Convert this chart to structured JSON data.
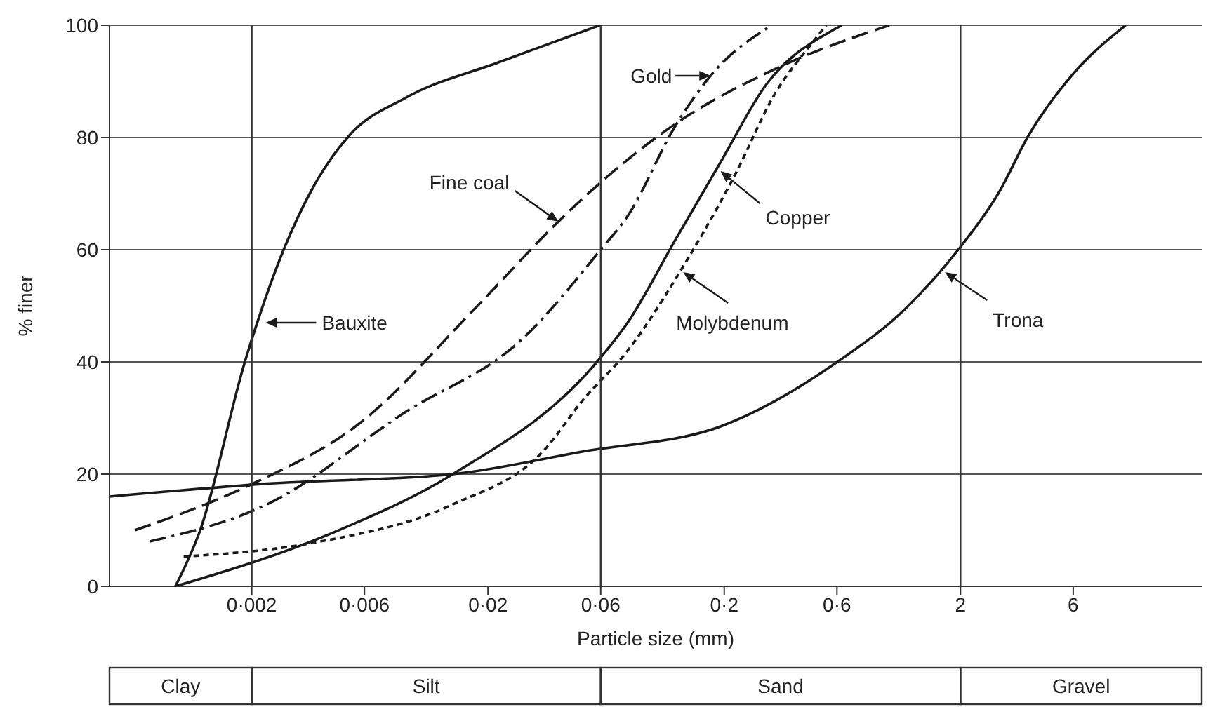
{
  "chart_data": {
    "type": "line",
    "xlabel": "Particle size (mm)",
    "ylabel": "% finer",
    "log": "x",
    "xlim": [
      0.0005,
      21
    ],
    "ylim": [
      0,
      100
    ],
    "xticks": [
      {
        "value": 0.002,
        "label": "0·002"
      },
      {
        "value": 0.006,
        "label": "0·006"
      },
      {
        "value": 0.02,
        "label": "0·02"
      },
      {
        "value": 0.06,
        "label": "0·06"
      },
      {
        "value": 0.2,
        "label": "0·2"
      },
      {
        "value": 0.6,
        "label": "0·6"
      },
      2,
      6
    ],
    "yticks": [
      0,
      20,
      40,
      60,
      80,
      100
    ],
    "grid": "y",
    "legend": false,
    "series": [
      {
        "color": "#1a1a1a",
        "line_style": "solid",
        "x": [
          0.00095,
          0.00121,
          0.00187,
          0.00273,
          0.00368,
          0.00521,
          0.0089,
          0.0222,
          0.0595
        ],
        "values": [
          0,
          10,
          40,
          60,
          71.5,
          80.5,
          87,
          93.4,
          100
        ]
      },
      {
        "color": "#1a1a1a",
        "line_style": "dashed",
        "x": [
          0.00064,
          0.00195,
          0.0057,
          0.0176,
          0.0397,
          0.05,
          0.124,
          0.332,
          1.0
        ],
        "values": [
          10,
          18,
          29,
          49.5,
          65,
          69,
          82.4,
          92.3,
          100
        ]
      },
      {
        "color": "#1a1a1a",
        "line_style": "dashdot",
        "x": [
          0.00074,
          0.00232,
          0.0089,
          0.0278,
          0.06,
          0.078,
          0.124,
          0.175,
          0.318
        ],
        "values": [
          8,
          14.6,
          31,
          44,
          60,
          66,
          82,
          91,
          100
        ]
      },
      {
        "color": "#1a1a1a",
        "line_style": "solid",
        "x": [
          0.00095,
          0.00455,
          0.0142,
          0.0595,
          0.078,
          0.124,
          0.193,
          0.302,
          0.57,
          0.63
        ],
        "values": [
          0,
          9.8,
          20,
          40.6,
          47,
          61.7,
          75.6,
          89.5,
          99,
          100
        ]
      },
      {
        "color": "#1a1a1a",
        "line_style": "dotted",
        "x": [
          0.00103,
          0.00368,
          0.0142,
          0.0348,
          0.05,
          0.078,
          0.134,
          0.22,
          0.33,
          0.47,
          0.54
        ],
        "values": [
          5.3,
          7.8,
          14.6,
          24.4,
          33,
          42,
          57,
          73,
          88,
          96.8,
          100
        ]
      },
      {
        "color": "#1a1a1a",
        "line_style": "solid",
        "x": [
          0.0005,
          0.00232,
          0.0142,
          0.05,
          0.193,
          0.593,
          1.17,
          2.0,
          2.89,
          3.9,
          5.9,
          10.0
        ],
        "values": [
          16,
          18.3,
          20,
          24,
          28.5,
          39.8,
          49.5,
          60.5,
          70,
          80.5,
          91,
          100
        ]
      }
    ],
    "annotations": [
      {
        "text": "Bauxite",
        "x": 0.00229,
        "y": 47
      },
      {
        "text": "Fine coal",
        "x": 0.0397,
        "y": 65
      },
      {
        "text": "Gold",
        "x": 0.175,
        "y": 91
      },
      {
        "text": "Copper",
        "x": 0.193,
        "y": 74
      },
      {
        "text": "Molybdenum",
        "x": 0.134,
        "y": 56
      },
      {
        "text": "Trona",
        "x": 1.72,
        "y": 56
      },
      "Clay",
      "Silt",
      "Sand",
      "Gravel"
    ],
    "ref_lines": [
      {
        "axis": "x",
        "value": 0.002
      },
      {
        "axis": "x",
        "value": 0.06
      },
      {
        "axis": "x",
        "value": 2
      }
    ]
  }
}
